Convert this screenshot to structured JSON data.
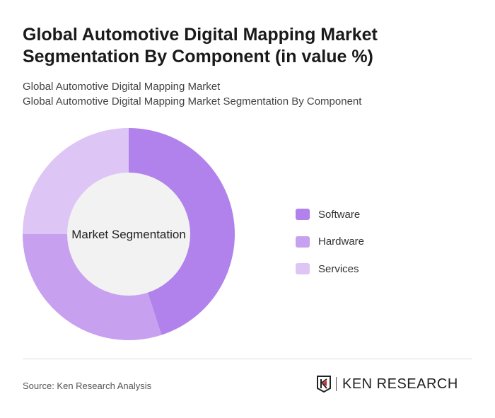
{
  "title": "Global Automotive Digital Mapping Market Segmentation By Component (in value %)",
  "subtitle1": "Global Automotive Digital Mapping Market",
  "subtitle2": "Global Automotive Digital Mapping Market Segmentation By Component",
  "source": "Source: Ken Research Analysis",
  "logo_text": "KEN RESEARCH",
  "chart_data": {
    "type": "pie",
    "donut": true,
    "center_label": "Market Segmentation",
    "legend_position": "right",
    "categories": [
      "Software",
      "Hardware",
      "Services"
    ],
    "values": [
      45,
      30,
      25
    ],
    "colors": [
      "#b182ec",
      "#c8a0f0",
      "#ddc5f6"
    ],
    "center_color": "#f2f2f2"
  }
}
